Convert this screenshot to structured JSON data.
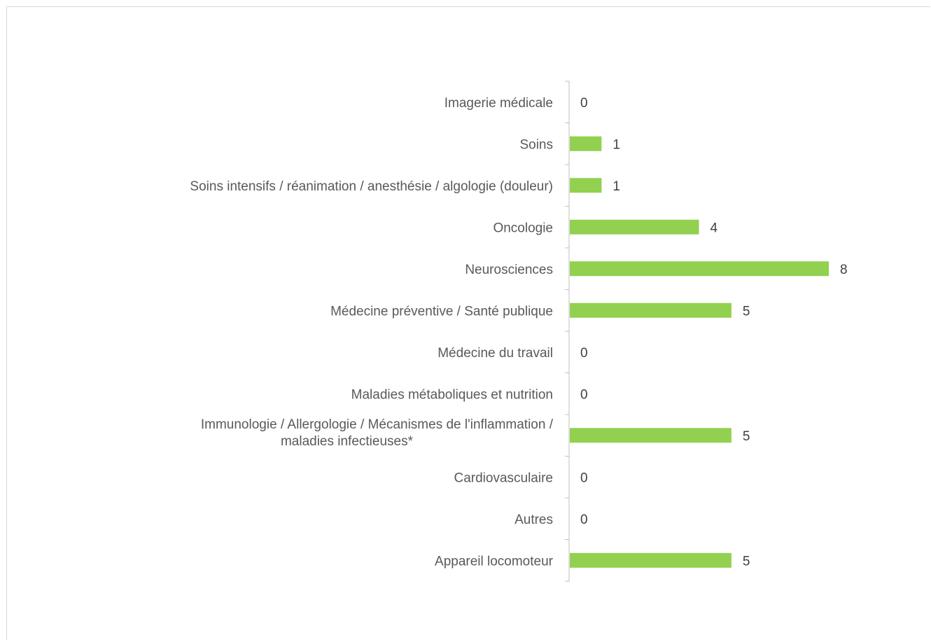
{
  "chart_data": {
    "type": "bar",
    "orientation": "horizontal",
    "title": "",
    "xlabel": "",
    "ylabel": "",
    "xlim": [
      0,
      8
    ],
    "grid": false,
    "legend": "none",
    "bar_color": "#92d050",
    "axis_color": "#bfbfbf",
    "categories": [
      "Imagerie médicale",
      "Soins",
      "Soins intensifs / réanimation / anesthésie / algologie (douleur)",
      "Oncologie",
      "Neurosciences",
      "Médecine préventive / Santé publique",
      "Médecine du travail",
      "Maladies métaboliques et nutrition",
      "Immunologie / Allergologie / Mécanismes de l'inflammation / maladies infectieuses*",
      "Cardiovasculaire",
      "Autres",
      "Appareil locomoteur"
    ],
    "category_lines": [
      [
        "Imagerie médicale"
      ],
      [
        "Soins"
      ],
      [
        "Soins intensifs / réanimation / anesthésie / algologie (douleur)"
      ],
      [
        "Oncologie"
      ],
      [
        "Neurosciences"
      ],
      [
        "Médecine préventive / Santé publique"
      ],
      [
        "Médecine du travail"
      ],
      [
        "Maladies métaboliques et nutrition"
      ],
      [
        "Immunologie / Allergologie / Mécanismes de l'inflammation /",
        "maladies infectieuses*"
      ],
      [
        "Cardiovasculaire"
      ],
      [
        "Autres"
      ],
      [
        "Appareil locomoteur"
      ]
    ],
    "values": [
      0,
      1,
      1,
      4,
      8,
      5,
      0,
      0,
      5,
      0,
      0,
      5
    ],
    "data_labels": [
      "0",
      "1",
      "1",
      "4",
      "8",
      "5",
      "0",
      "0",
      "5",
      "0",
      "0",
      "5"
    ]
  }
}
